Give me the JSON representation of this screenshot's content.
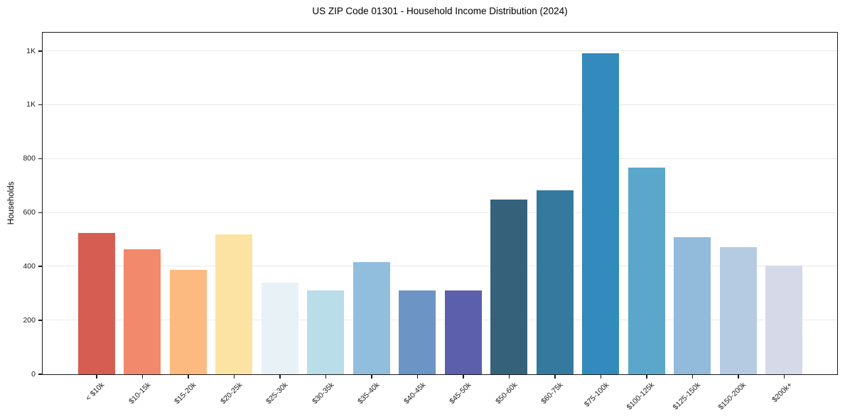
{
  "figure": {
    "title": "US ZIP Code 01301 - Household Income Distribution (2024)"
  },
  "chart_data": {
    "type": "bar",
    "title": "US ZIP Code 01301 - Household Income Distribution (2024)",
    "xlabel": "",
    "ylabel": "Households",
    "categories": [
      "< $10k",
      "$10-15k",
      "$15-20k",
      "$20-25k",
      "$25-30k",
      "$30-35k",
      "$35-40k",
      "$40-45k",
      "$45-50k",
      "$50-60k",
      "$60-75k",
      "$75-100k",
      "$100-125k",
      "$125-150k",
      "$150-200k",
      "$200k+"
    ],
    "values": [
      524,
      465,
      388,
      520,
      341,
      312,
      418,
      311,
      311,
      648,
      682,
      1192,
      767,
      510,
      472,
      404
    ],
    "bar_colors": [
      "#d65d52",
      "#f2886c",
      "#fcba80",
      "#fde3a3",
      "#e7f1f6",
      "#b9dde9",
      "#92bedd",
      "#6c94c5",
      "#5c5fac",
      "#36617a",
      "#36799f",
      "#338abc",
      "#5ba7cb",
      "#92bada",
      "#b5cbe2",
      "#d6d9e8"
    ],
    "y_ticks": {
      "values": [
        0,
        200,
        400,
        600,
        800,
        1000,
        1200
      ],
      "labels": [
        "0",
        "200",
        "400",
        "600",
        "800",
        "1K",
        "1K"
      ]
    },
    "ylim": [
      0,
      1266
    ],
    "grid": "horizontal",
    "gridline_color": "#e9e9ef",
    "spine_color": "#1a1a1a",
    "background": "#ffffff",
    "legend": "none"
  }
}
